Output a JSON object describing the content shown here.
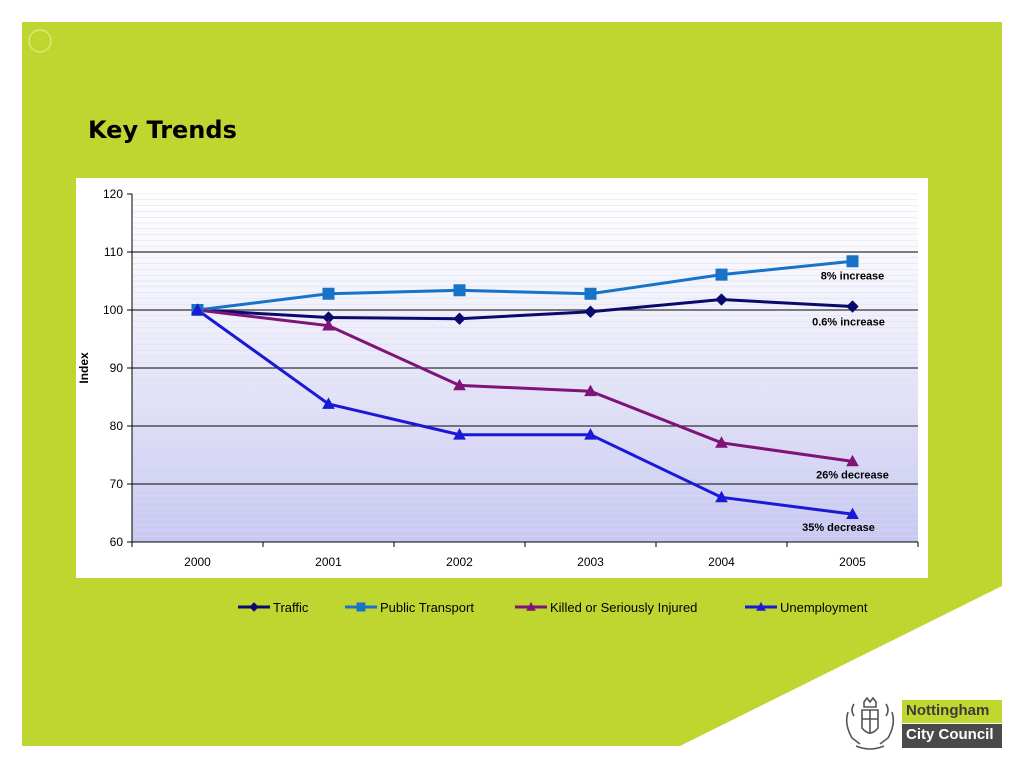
{
  "slide": {
    "title": "Key Trends",
    "background_color": "#bfd630"
  },
  "logo": {
    "line1": "Nottingham",
    "line2": "City Council",
    "crest_icon": "coat-of-arms-icon"
  },
  "chart_data": {
    "type": "line",
    "title": "",
    "xlabel": "",
    "ylabel": "Index",
    "ylim": [
      60,
      120
    ],
    "yticks": [
      60,
      70,
      80,
      90,
      100,
      110,
      120
    ],
    "grid": true,
    "legend_position": "bottom",
    "categories": [
      "2000",
      "2001",
      "2002",
      "2003",
      "2004",
      "2005"
    ],
    "series": [
      {
        "name": "Traffic",
        "color": "#0a0a6e",
        "marker": "diamond",
        "values": [
          100,
          98.7,
          98.5,
          99.7,
          101.8,
          100.6
        ]
      },
      {
        "name": "Public Transport",
        "color": "#1873c8",
        "marker": "square",
        "values": [
          100,
          102.8,
          103.4,
          102.8,
          106.1,
          108.4
        ]
      },
      {
        "name": "Killed or Seriously Injured",
        "color": "#7e1477",
        "marker": "triangle",
        "values": [
          100,
          97.3,
          87.0,
          86.0,
          77.1,
          73.9
        ]
      },
      {
        "name": "Unemployment",
        "color": "#1a1ad6",
        "marker": "triangle",
        "values": [
          100,
          83.8,
          78.5,
          78.5,
          67.7,
          64.8
        ]
      }
    ],
    "annotations": [
      {
        "text": "8% increase",
        "series": 1
      },
      {
        "text": "0.6% increase",
        "series": 0
      },
      {
        "text": "26% decrease",
        "series": 2
      },
      {
        "text": "35% decrease",
        "series": 3
      }
    ]
  }
}
